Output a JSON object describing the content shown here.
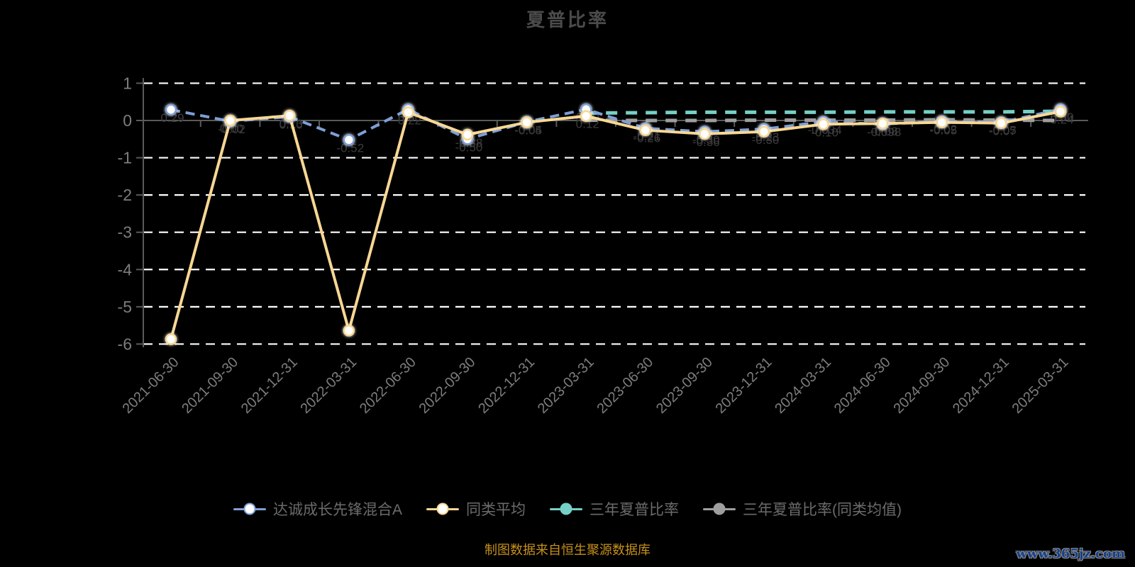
{
  "header": {
    "title": "夏普比率"
  },
  "footer": {
    "source_note": "制图数据来自恒生聚源数据库",
    "watermark": "www.365jz.com"
  },
  "colors": {
    "background": "#000000",
    "title_text": "#4b4b4b",
    "axis_line": "#5a5a5a",
    "axis_label": "#7d7d7d",
    "gridline": "#ffffff",
    "point_label": "#3c3c3c",
    "legend_text": "#6b6b6b",
    "source_note": "#c6901c",
    "watermark_fill": "#16418d"
  },
  "chart_data": {
    "type": "line",
    "title": "夏普比率",
    "xlabel": "",
    "ylabel": "",
    "ylim": [
      -6,
      1
    ],
    "y_ticks": [
      1,
      0,
      -1,
      -2,
      -3,
      -4,
      -5,
      -6
    ],
    "grid": "horizontal white dashed lines",
    "legend_position": "bottom",
    "categories": [
      "2021-06-30",
      "2021-09-30",
      "2021-12-31",
      "2022-03-31",
      "2022-06-30",
      "2022-09-30",
      "2022-12-31",
      "2023-03-31",
      "2023-06-30",
      "2023-09-30",
      "2023-12-31",
      "2024-03-31",
      "2024-06-30",
      "2024-09-30",
      "2024-12-31",
      "2025-03-31"
    ],
    "series": [
      {
        "name": "达诚成长先锋混合A",
        "color": "#7e9fd6",
        "line_style": "dashed",
        "marker": "white-circle",
        "values": [
          0.29,
          -0.02,
          0.1,
          -0.52,
          0.3,
          -0.5,
          -0.04,
          0.3,
          -0.21,
          -0.3,
          -0.23,
          -0.034,
          -0.098,
          -0.02,
          -0.05,
          0.3
        ],
        "labels": [
          "0.29",
          "-0.02",
          "0.10",
          "-0.52",
          "0.30",
          "-0.50",
          "-0.04",
          "0.30",
          "-0.21",
          "-0.30",
          "-0.23",
          "-0.034",
          "-0.098",
          "-0.02",
          "-0.05",
          "0.30"
        ]
      },
      {
        "name": "同类平均",
        "color": "#f7d794",
        "line_style": "solid",
        "marker": "white-circle",
        "values": [
          -5.87,
          0.0,
          0.13,
          -5.64,
          0.22,
          -0.38,
          -0.05,
          0.12,
          -0.26,
          -0.36,
          -0.3,
          -0.1,
          -0.08,
          -0.05,
          -0.07,
          0.24
        ],
        "labels": [
          "-5.87",
          "0.00",
          "0.13",
          "-5.64",
          "0.22",
          "-0.38",
          "-0.05",
          "0.12",
          "-0.26",
          "-0.36",
          "-0.30",
          "-0.10",
          "-0.08",
          "-0.05",
          "-0.07",
          "0.24"
        ]
      },
      {
        "name": "三年夏普比率",
        "color": "#76d0c5",
        "line_style": "dashed",
        "marker": "none",
        "values": [
          null,
          null,
          null,
          null,
          null,
          null,
          null,
          0.2,
          0.21,
          0.22,
          0.22,
          0.22,
          0.23,
          0.23,
          0.23,
          0.25
        ],
        "labels": null
      },
      {
        "name": "三年夏普比率(同类均值)",
        "color": "#9e9e9e",
        "line_style": "dashed",
        "marker": "none",
        "values": [
          null,
          null,
          null,
          null,
          null,
          null,
          null,
          0.01,
          0.0,
          0.0,
          0.01,
          0.01,
          0.01,
          0.02,
          0.01,
          0.0
        ],
        "labels": null
      }
    ]
  }
}
